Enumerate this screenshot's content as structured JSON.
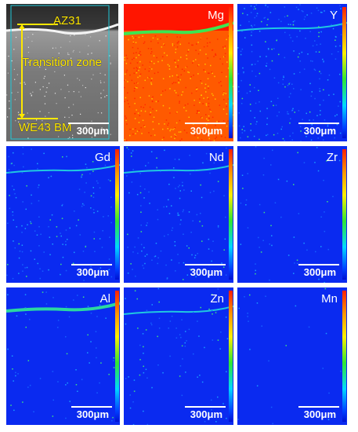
{
  "figure": {
    "sem_panel": {
      "top_label": "AZ31",
      "middle_label": "Transition zone",
      "bottom_label": "WE43 BM",
      "scale_bar": "300μm"
    },
    "maps": [
      {
        "element": "Mg",
        "scale_bar": "300μm",
        "base_color": "#ff5a00"
      },
      {
        "element": "Y",
        "scale_bar": "300μm",
        "base_color": "#0a2af0"
      },
      {
        "element": "Gd",
        "scale_bar": "300μm",
        "base_color": "#0a2af0"
      },
      {
        "element": "Nd",
        "scale_bar": "300μm",
        "base_color": "#0a2af0"
      },
      {
        "element": "Zr",
        "scale_bar": "300μm",
        "base_color": "#0a2af0"
      },
      {
        "element": "Al",
        "scale_bar": "300μm",
        "base_color": "#0a2af0"
      },
      {
        "element": "Zn",
        "scale_bar": "300μm",
        "base_color": "#0a2af0"
      },
      {
        "element": "Mn",
        "scale_bar": "300μm",
        "base_color": "#0a2af0"
      }
    ]
  }
}
